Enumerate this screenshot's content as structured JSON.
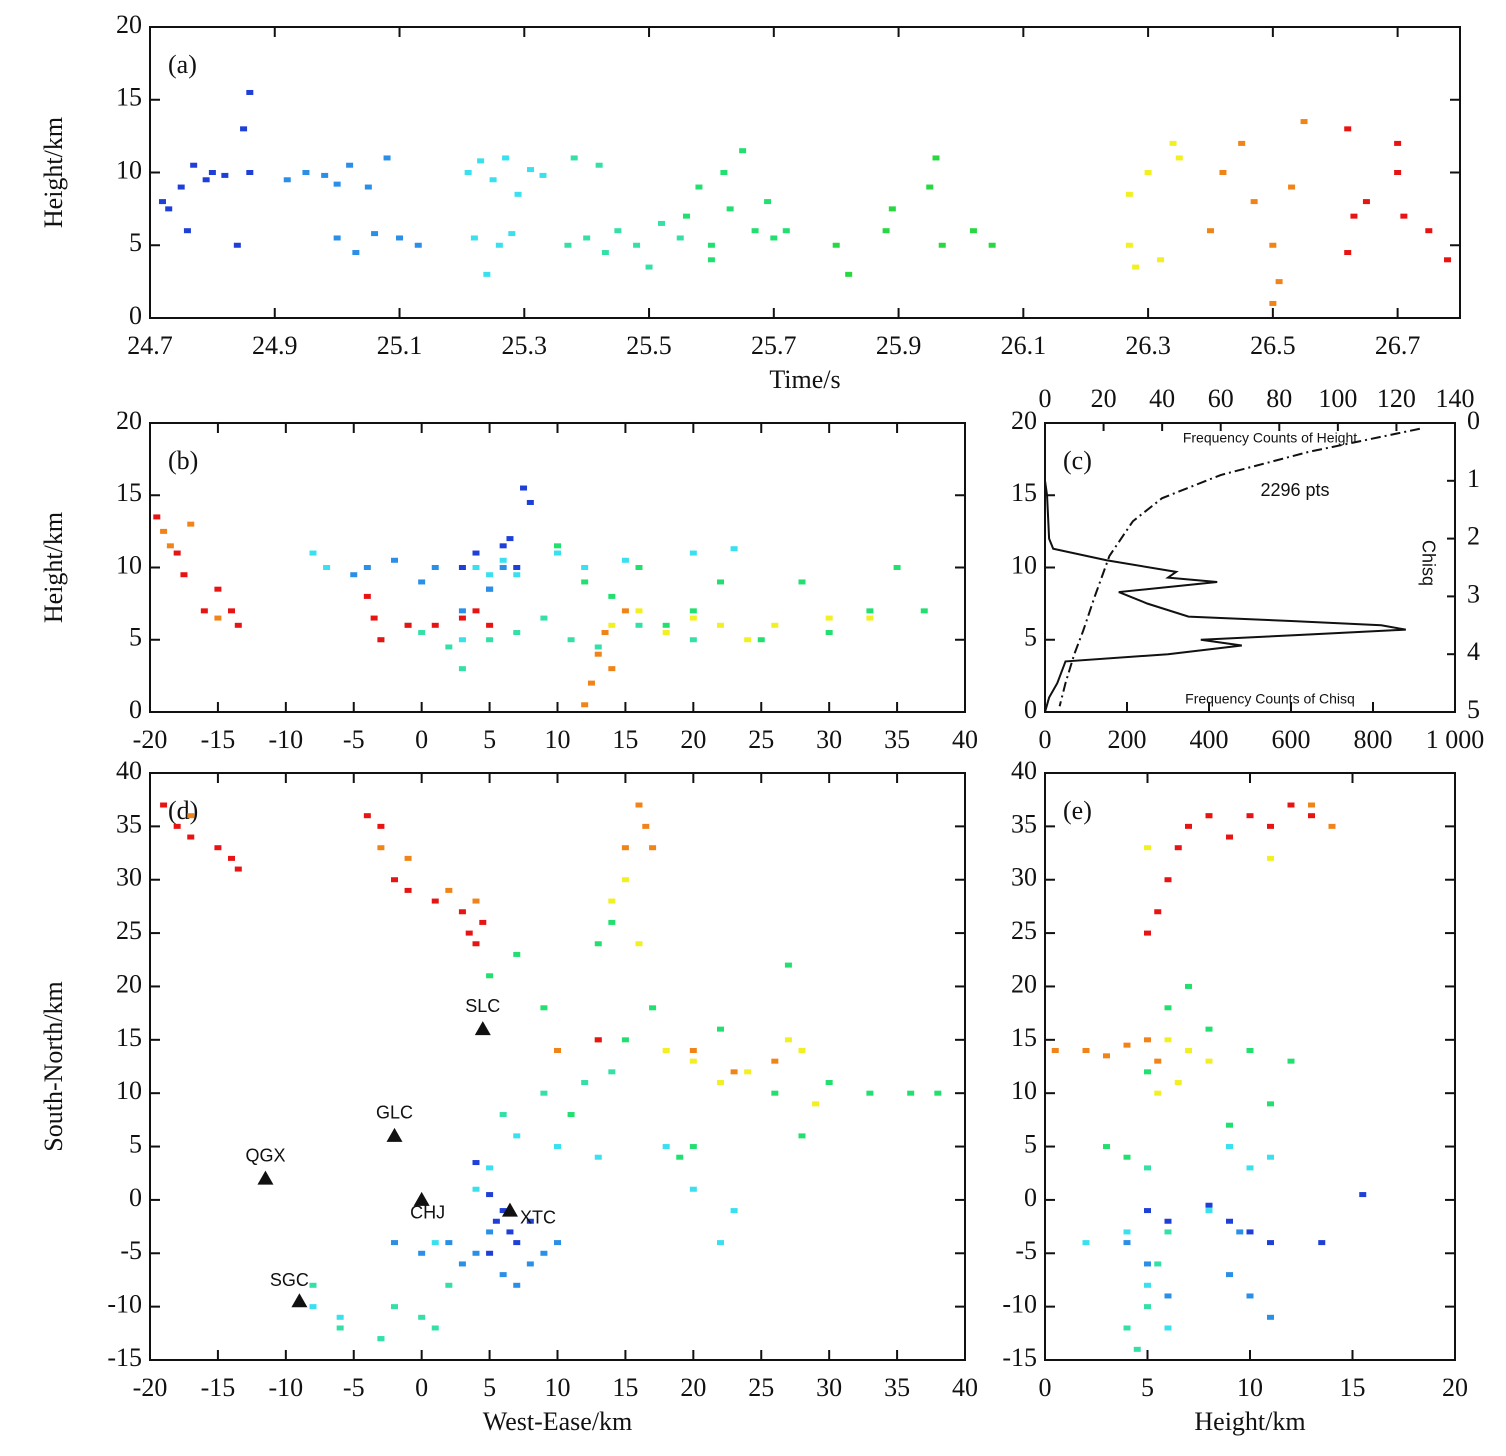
{
  "chart_data": [
    {
      "type": "scatter",
      "panel_label": "(a)",
      "xlabel": "Time/s",
      "ylabel": "Height/km",
      "xlim": [
        24.7,
        26.8
      ],
      "ylim": [
        0,
        20
      ],
      "xticks": [
        24.7,
        24.9,
        25.1,
        25.3,
        25.5,
        25.7,
        25.9,
        26.1,
        26.3,
        26.5,
        26.7
      ],
      "yticks": [
        0,
        5,
        10,
        15,
        20
      ],
      "series": [
        {
          "color": "#1e3fd8",
          "x": [
            24.72,
            24.73,
            24.75,
            24.77,
            24.79,
            24.8,
            24.82,
            24.85,
            24.86,
            24.86,
            24.84,
            24.76
          ],
          "values": [
            8,
            7.5,
            9,
            10.5,
            9.5,
            10,
            9.8,
            13,
            15.5,
            10,
            5,
            6
          ]
        },
        {
          "color": "#2a8fe6",
          "x": [
            24.92,
            24.95,
            24.98,
            25.0,
            25.02,
            25.05,
            25.08,
            25.1,
            25.13,
            25.0,
            25.03,
            25.06
          ],
          "values": [
            9.5,
            10,
            9.8,
            9.2,
            10.5,
            9,
            11,
            5.5,
            5,
            5.5,
            4.5,
            5.8
          ]
        },
        {
          "color": "#38e0f0",
          "x": [
            25.21,
            25.23,
            25.25,
            25.27,
            25.29,
            25.31,
            25.33,
            25.22,
            25.24,
            25.26,
            25.28
          ],
          "values": [
            10,
            10.8,
            9.5,
            11,
            8.5,
            10.2,
            9.8,
            5.5,
            3,
            5,
            5.8
          ]
        },
        {
          "color": "#34e0a8",
          "x": [
            25.37,
            25.4,
            25.43,
            25.45,
            25.48,
            25.5,
            25.52,
            25.55,
            25.38,
            25.42
          ],
          "values": [
            5,
            5.5,
            4.5,
            6,
            5,
            3.5,
            6.5,
            5.5,
            11,
            10.5
          ]
        },
        {
          "color": "#22e070",
          "x": [
            25.56,
            25.58,
            25.6,
            25.62,
            25.65,
            25.67,
            25.69,
            25.7,
            25.72,
            25.6,
            25.63
          ],
          "values": [
            7,
            9,
            5,
            10,
            11.5,
            6,
            8,
            5.5,
            6,
            4,
            7.5
          ]
        },
        {
          "color": "#28d840",
          "x": [
            25.8,
            25.82,
            25.88,
            25.89,
            25.95,
            25.96,
            25.97,
            26.02,
            26.05
          ],
          "values": [
            5,
            3,
            6,
            7.5,
            9,
            11,
            5,
            6,
            5
          ]
        },
        {
          "color": "#f2f020",
          "x": [
            26.27,
            26.27,
            26.28,
            26.3,
            26.32,
            26.34,
            26.35
          ],
          "values": [
            5,
            8.5,
            3.5,
            10,
            4,
            12,
            11
          ]
        },
        {
          "color": "#f08418",
          "x": [
            26.4,
            26.42,
            26.45,
            26.47,
            26.5,
            26.5,
            26.51,
            26.53,
            26.55
          ],
          "values": [
            6,
            10,
            12,
            8,
            5,
            1,
            2.5,
            9,
            13.5
          ]
        },
        {
          "color": "#e81414",
          "x": [
            26.62,
            26.63,
            26.65,
            26.7,
            26.7,
            26.71,
            26.75,
            26.78,
            26.62
          ],
          "values": [
            13,
            7,
            8,
            10,
            12,
            7,
            6,
            4,
            4.5
          ]
        }
      ]
    },
    {
      "type": "scatter",
      "panel_label": "(b)",
      "ylabel": "Height/km",
      "xlim": [
        -20,
        40
      ],
      "ylim": [
        0,
        20
      ],
      "xticks": [
        -20,
        -15,
        -10,
        -5,
        0,
        5,
        10,
        15,
        20,
        25,
        30,
        35,
        40
      ],
      "yticks": [
        0,
        5,
        10,
        15,
        20
      ],
      "series": [
        {
          "color": "#1e3fd8",
          "x": [
            3,
            4,
            5,
            6,
            6.5,
            7,
            7.5,
            8
          ],
          "values": [
            10,
            11,
            8.5,
            11.5,
            12,
            10,
            15.5,
            14.5
          ]
        },
        {
          "color": "#2a8fe6",
          "x": [
            -5,
            -4,
            -2,
            0,
            1,
            3,
            5,
            6
          ],
          "values": [
            9.5,
            10,
            10.5,
            9,
            10,
            7,
            8.5,
            10
          ]
        },
        {
          "color": "#38e0f0",
          "x": [
            -8,
            -7,
            3,
            4,
            5,
            6,
            7,
            10,
            12,
            15,
            20,
            23
          ],
          "values": [
            11,
            10,
            5,
            10,
            9.5,
            10.5,
            9.5,
            11,
            10,
            10.5,
            11,
            11.3
          ]
        },
        {
          "color": "#34e0a8",
          "x": [
            -3,
            -1,
            0,
            2,
            3,
            5,
            7,
            9,
            11,
            13,
            16,
            20
          ],
          "values": [
            5,
            6,
            5.5,
            4.5,
            3,
            5,
            5.5,
            6.5,
            5,
            4.5,
            6,
            5
          ]
        },
        {
          "color": "#22e070",
          "x": [
            10,
            12,
            14,
            16,
            18,
            20,
            22,
            25,
            28,
            30,
            33,
            35,
            37
          ],
          "values": [
            11.5,
            9,
            8,
            10,
            6,
            7,
            9,
            5,
            9,
            5.5,
            7,
            10,
            7
          ]
        },
        {
          "color": "#f2f020",
          "x": [
            14,
            16,
            18,
            20,
            22,
            24,
            26,
            30,
            33
          ],
          "values": [
            6,
            7,
            5.5,
            6.5,
            6,
            5,
            6,
            6.5,
            6.5
          ]
        },
        {
          "color": "#f08418",
          "x": [
            -19,
            -18.5,
            -17,
            -15,
            12,
            12.5,
            13,
            13.5,
            14,
            15
          ],
          "values": [
            12.5,
            11.5,
            13,
            6.5,
            0.5,
            2,
            4,
            5.5,
            3,
            7
          ]
        },
        {
          "color": "#e81414",
          "x": [
            -19.5,
            -18,
            -17.5,
            -16,
            -15,
            -14,
            -13.5,
            -4,
            -3.5,
            -3,
            -1,
            1,
            3,
            4,
            5
          ],
          "values": [
            13.5,
            11,
            9.5,
            7,
            8.5,
            7,
            6,
            8,
            6.5,
            5,
            6,
            6,
            6.5,
            7,
            6
          ]
        }
      ]
    },
    {
      "type": "line",
      "panel_label": "(c)",
      "y2label": "Chisq",
      "annotation": "2296 pts",
      "xlim": [
        0,
        1000
      ],
      "ylim": [
        0,
        20
      ],
      "x2lim": [
        0,
        140
      ],
      "y2lim": [
        5,
        0
      ],
      "xticks": [
        0,
        200,
        400,
        600,
        800,
        {
          "value": 1000,
          "label": "1 000"
        }
      ],
      "x2ticks": [
        0,
        20,
        40,
        60,
        80,
        100,
        120,
        140
      ],
      "yticks": [
        0,
        5,
        10,
        15,
        20
      ],
      "y2ticks": [
        0,
        1,
        2,
        3,
        4,
        5
      ],
      "series": [
        {
          "name": "Frequency Counts of Height",
          "color": "#111111",
          "linestyle": "solid",
          "x": [
            0,
            10,
            30,
            50,
            300,
            480,
            380,
            600,
            880,
            820,
            600,
            350,
            250,
            180,
            420,
            300,
            320,
            150,
            20,
            10,
            5,
            0
          ],
          "values": [
            0,
            1,
            2,
            3.5,
            4,
            4.6,
            5,
            5.3,
            5.7,
            6,
            6.3,
            6.6,
            7.5,
            8.3,
            9,
            9.3,
            9.7,
            10.5,
            11.3,
            12,
            15,
            16
          ]
        },
        {
          "name": "Frequency Counts of Chisq",
          "color": "#111111",
          "linestyle": "dashdot",
          "axis": "y2",
          "xaxis": "x2",
          "x": [
            128,
            90,
            60,
            40,
            30,
            22,
            17,
            13,
            10,
            7,
            5
          ],
          "values": [
            0.1,
            0.5,
            0.9,
            1.3,
            1.7,
            2.3,
            3,
            3.6,
            4,
            4.5,
            4.9
          ]
        }
      ]
    },
    {
      "type": "scatter",
      "panel_label": "(d)",
      "xlabel": "West-Ease/km",
      "ylabel": "South-North/km",
      "xlim": [
        -20,
        40
      ],
      "ylim": [
        -15,
        40
      ],
      "xticks": [
        -20,
        -15,
        -10,
        -5,
        0,
        5,
        10,
        15,
        20,
        25,
        30,
        35,
        40
      ],
      "yticks": [
        -15,
        -10,
        -5,
        0,
        5,
        10,
        15,
        20,
        25,
        30,
        35,
        40
      ],
      "series": [
        {
          "color": "#2a8fe6",
          "x": [
            -2,
            0,
            2,
            3,
            4,
            5,
            6,
            7,
            8,
            9,
            10
          ],
          "values": [
            -4,
            -5,
            -4,
            -6,
            -5,
            -3,
            -7,
            -8,
            -6,
            -5,
            -4
          ]
        },
        {
          "color": "#1e3fd8",
          "x": [
            4,
            5,
            5.5,
            6,
            6.5,
            7,
            8,
            5
          ],
          "values": [
            3.5,
            0.5,
            -2,
            -1,
            -3,
            -4,
            -2,
            -5
          ]
        },
        {
          "color": "#38e0f0",
          "x": [
            -8,
            -6,
            -3,
            1,
            4,
            5,
            7,
            10,
            13,
            18,
            20,
            22,
            23
          ],
          "values": [
            -10,
            -11,
            -13,
            -4,
            1,
            3,
            6,
            5,
            4,
            5,
            1,
            -4,
            -1
          ]
        },
        {
          "color": "#34e0a8",
          "x": [
            -8,
            -6,
            -3,
            -2,
            0,
            1,
            2,
            6,
            9,
            12,
            14
          ],
          "values": [
            -8,
            -12,
            -13,
            -10,
            -11,
            -12,
            -8,
            8,
            10,
            11,
            12
          ]
        },
        {
          "color": "#22e070",
          "x": [
            5,
            7,
            9,
            11,
            13,
            15,
            17,
            19,
            20,
            22,
            26,
            27,
            28,
            30,
            33,
            36,
            38,
            14
          ],
          "values": [
            21,
            23,
            18,
            8,
            24,
            15,
            18,
            4,
            5,
            16,
            10,
            22,
            6,
            11,
            10,
            10,
            10,
            26
          ]
        },
        {
          "color": "#f2f020",
          "x": [
            14,
            15,
            16,
            18,
            20,
            22,
            24,
            27,
            28,
            29
          ],
          "values": [
            28,
            30,
            24,
            14,
            13,
            11,
            12,
            15,
            14,
            9
          ]
        },
        {
          "color": "#f08418",
          "x": [
            -17,
            -3,
            -1,
            2,
            4,
            16,
            16.5,
            17,
            15,
            10,
            13,
            20,
            23,
            26
          ],
          "values": [
            36,
            33,
            32,
            29,
            28,
            37,
            35,
            33,
            33,
            14,
            15,
            14,
            12,
            13
          ]
        },
        {
          "color": "#e81414",
          "x": [
            -19,
            -18,
            -17,
            -15,
            -14,
            -13.5,
            -4,
            -3,
            -2,
            -1,
            1,
            3,
            3.5,
            4,
            4.5,
            13
          ],
          "values": [
            37,
            35,
            34,
            33,
            32,
            31,
            36,
            35,
            30,
            29,
            28,
            27,
            25,
            24,
            26,
            15
          ]
        }
      ],
      "stations": [
        {
          "name": "SLC",
          "x": 4.5,
          "y": 16
        },
        {
          "name": "GLC",
          "x": -2,
          "y": 6
        },
        {
          "name": "QGX",
          "x": -11.5,
          "y": 2
        },
        {
          "name": "CHJ",
          "x": 0,
          "y": 0
        },
        {
          "name": "XTC",
          "x": 6.5,
          "y": -1
        },
        {
          "name": "SGC",
          "x": -9,
          "y": -9.5
        }
      ]
    },
    {
      "type": "scatter",
      "panel_label": "(e)",
      "xlabel": "Height/km",
      "xlim": [
        0,
        20
      ],
      "ylim": [
        -15,
        40
      ],
      "xticks": [
        0,
        5,
        10,
        15,
        20
      ],
      "yticks": [
        -15,
        -10,
        -5,
        0,
        5,
        10,
        15,
        20,
        25,
        30,
        35,
        40
      ],
      "series": [
        {
          "color": "#1e3fd8",
          "x": [
            5,
            6,
            8,
            9,
            10,
            11,
            13.5,
            15.5
          ],
          "values": [
            -1,
            -2,
            -0.5,
            -2,
            -3,
            -4,
            -4,
            0.5
          ]
        },
        {
          "color": "#2a8fe6",
          "x": [
            4,
            5,
            6,
            9,
            10,
            11,
            9.5
          ],
          "values": [
            -4,
            -6,
            -9,
            -7,
            -9,
            -11,
            -3
          ]
        },
        {
          "color": "#38e0f0",
          "x": [
            2,
            4,
            5,
            6,
            9,
            10,
            11,
            8
          ],
          "values": [
            -4,
            -3,
            -8,
            -12,
            5,
            3,
            4,
            -1
          ]
        },
        {
          "color": "#34e0a8",
          "x": [
            4,
            4.5,
            5,
            5.5,
            6,
            5
          ],
          "values": [
            -12,
            -14,
            -10,
            -6,
            -3,
            3
          ]
        },
        {
          "color": "#22e070",
          "x": [
            3,
            4,
            5,
            6,
            7,
            8,
            9,
            10,
            11,
            12
          ],
          "values": [
            5,
            4,
            12,
            18,
            20,
            16,
            7,
            14,
            9,
            13
          ]
        },
        {
          "color": "#f2f020",
          "x": [
            5.5,
            6,
            6.5,
            7,
            8,
            11,
            5
          ],
          "values": [
            10,
            15,
            11,
            14,
            13,
            32,
            33
          ]
        },
        {
          "color": "#f08418",
          "x": [
            0.5,
            2,
            3,
            4,
            5,
            5.5,
            8,
            14,
            13
          ],
          "values": [
            14,
            14,
            13.5,
            14.5,
            15,
            13,
            36,
            35,
            37
          ]
        },
        {
          "color": "#e81414",
          "x": [
            5,
            5.5,
            6,
            6.5,
            7,
            8,
            9,
            10,
            11,
            12,
            13
          ],
          "values": [
            25,
            27,
            30,
            33,
            35,
            36,
            34,
            36,
            35,
            37,
            36
          ]
        }
      ]
    }
  ]
}
